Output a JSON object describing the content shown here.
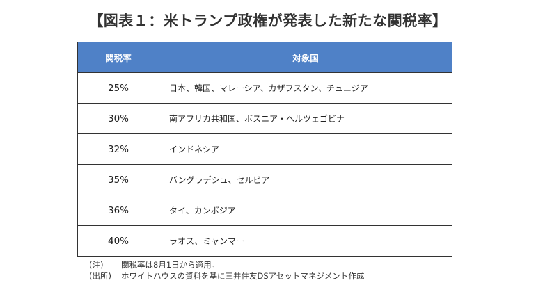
{
  "title": "【図表１：米トランプ政権が発表した新たな関税率】",
  "table": {
    "headers": [
      "関税率",
      "対象国"
    ],
    "rows": [
      {
        "rate": "25%",
        "countries": "日本、韓国、マレーシア、カザフスタン、チュニジア"
      },
      {
        "rate": "30%",
        "countries": "南アフリカ共和国、ボスニア・ヘルツェゴビナ"
      },
      {
        "rate": "32%",
        "countries": "インドネシア"
      },
      {
        "rate": "35%",
        "countries": "バングラデシュ、セルビア"
      },
      {
        "rate": "36%",
        "countries": "タイ、カンボジア"
      },
      {
        "rate": "40%",
        "countries": "ラオス、ミャンマー"
      }
    ]
  },
  "notes": [
    {
      "label": "(注)",
      "text": "関税率は8月1日から適用。"
    },
    {
      "label": "(出所)",
      "text": "ホワイトハウスの資料を基に三井住友DSアセットマネジメント作成"
    }
  ]
}
